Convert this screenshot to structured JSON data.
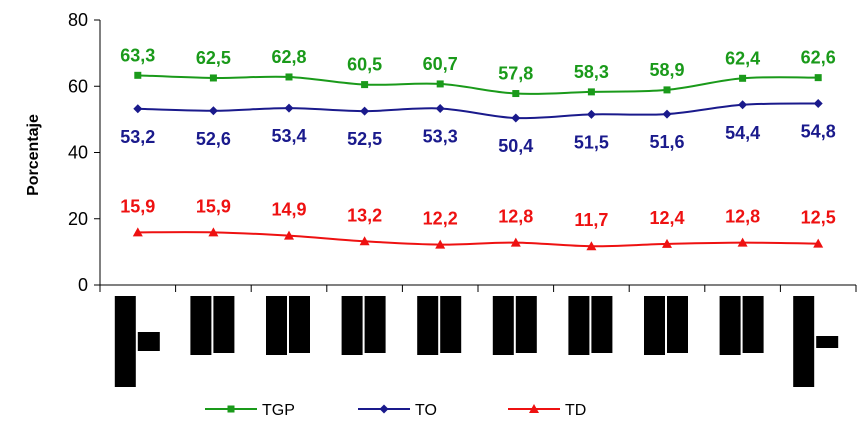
{
  "chart_data": {
    "type": "line",
    "title": "",
    "xlabel": "",
    "ylabel": "Porcentaje",
    "ylim": [
      0,
      80
    ],
    "yticks": [
      "0",
      "20",
      "40",
      "60",
      "80"
    ],
    "grid": false,
    "legend_position": "bottom",
    "x_tick_labels_style": "illegible black blocks",
    "x_count": 10,
    "series": [
      {
        "name": "TGP",
        "color": "#1a9a1a",
        "marker": "square",
        "values": [
          63.3,
          62.5,
          62.8,
          60.5,
          60.7,
          57.8,
          58.3,
          58.9,
          62.4,
          62.6
        ],
        "labels": [
          "63,3",
          "62,5",
          "62,8",
          "60,5",
          "60,7",
          "57,8",
          "58,3",
          "58,9",
          "62,4",
          "62,6"
        ]
      },
      {
        "name": "TO",
        "color": "#1a1a8c",
        "marker": "diamond",
        "values": [
          53.2,
          52.6,
          53.4,
          52.5,
          53.3,
          50.4,
          51.5,
          51.6,
          54.4,
          54.8
        ],
        "labels": [
          "53,2",
          "52,6",
          "53,4",
          "52,5",
          "53,3",
          "50,4",
          "51,5",
          "51,6",
          "54,4",
          "54,8"
        ]
      },
      {
        "name": "TD",
        "color": "#ee1111",
        "marker": "triangle",
        "values": [
          15.9,
          15.9,
          14.9,
          13.2,
          12.2,
          12.8,
          11.7,
          12.4,
          12.8,
          12.5
        ],
        "labels": [
          "15,9",
          "15,9",
          "14,9",
          "13,2",
          "12,2",
          "12,8",
          "11,7",
          "12,4",
          "12,8",
          "12,5"
        ]
      }
    ]
  }
}
